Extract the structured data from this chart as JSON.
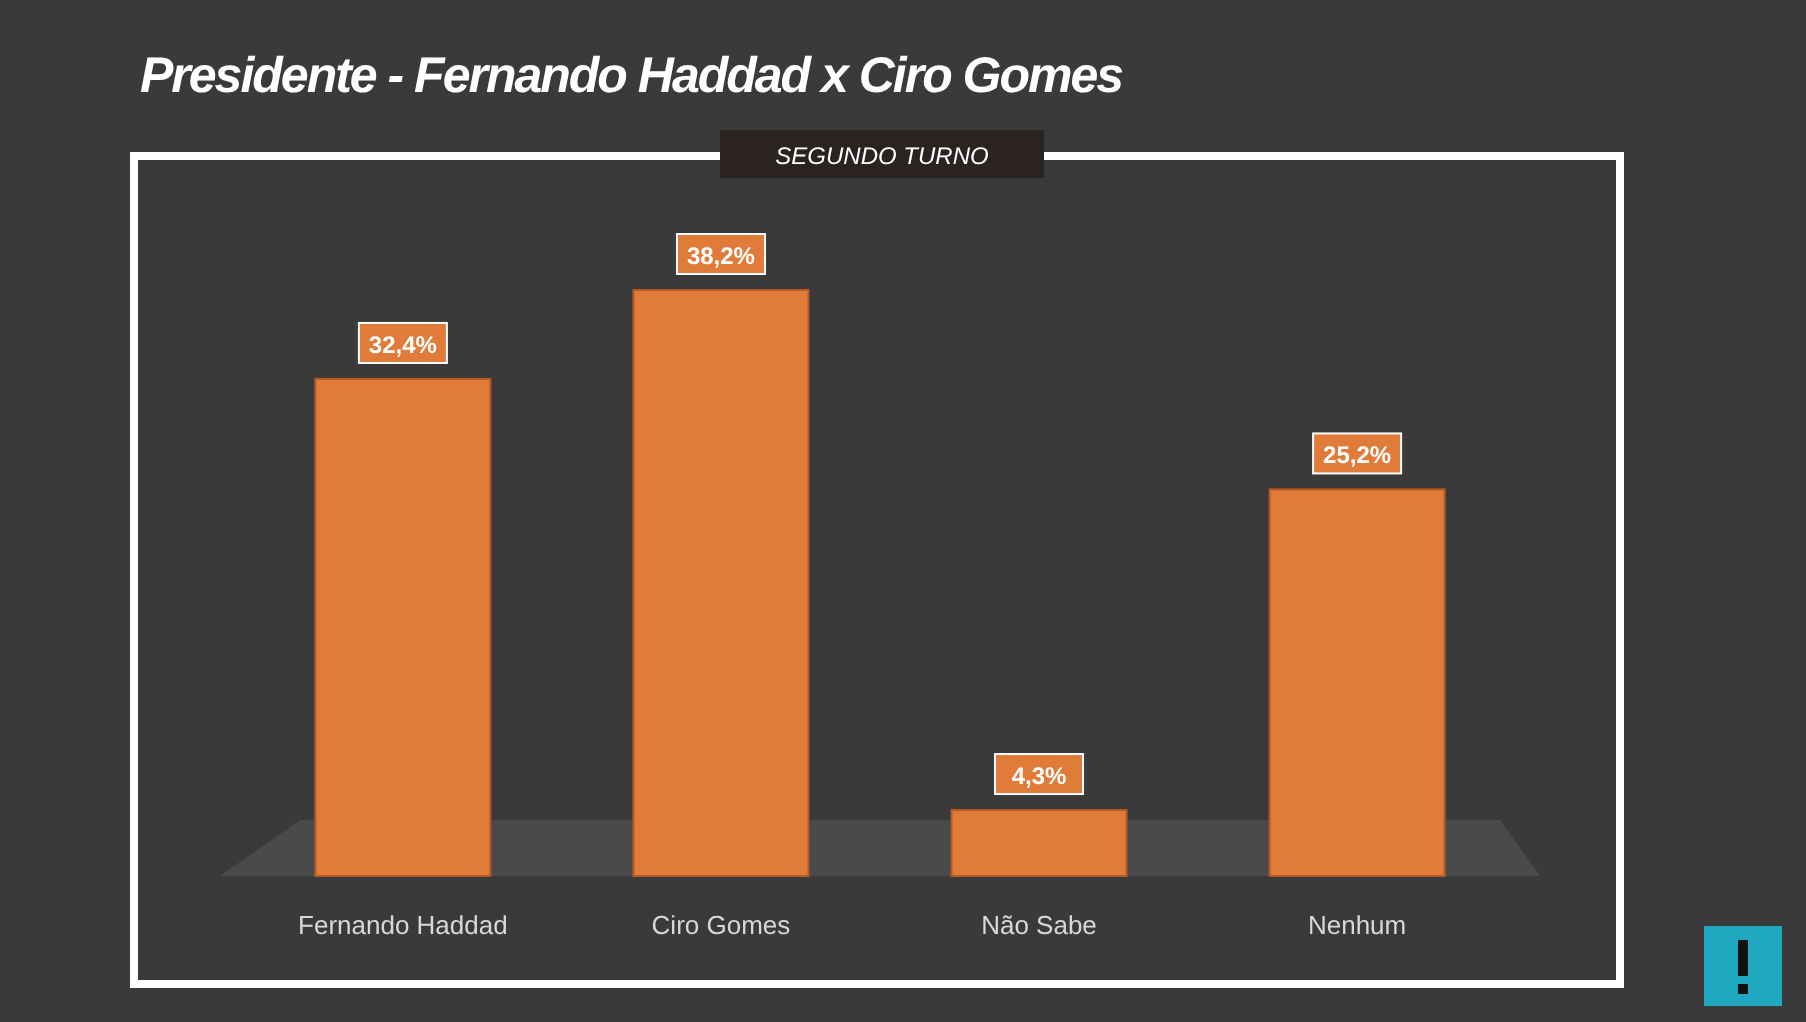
{
  "chart_data": {
    "type": "bar",
    "title": "Presidente -  Fernando Haddad x Ciro Gomes",
    "subtitle": "SEGUNDO TURNO",
    "categories": [
      "Fernando Haddad",
      "Ciro Gomes",
      "Não Sabe",
      "Nenhum"
    ],
    "values": [
      32.4,
      38.2,
      4.3,
      25.2
    ],
    "value_labels": [
      "32,4%",
      "38,2%",
      "4,3%",
      "25,2%"
    ],
    "color": "#e07b39"
  }
}
